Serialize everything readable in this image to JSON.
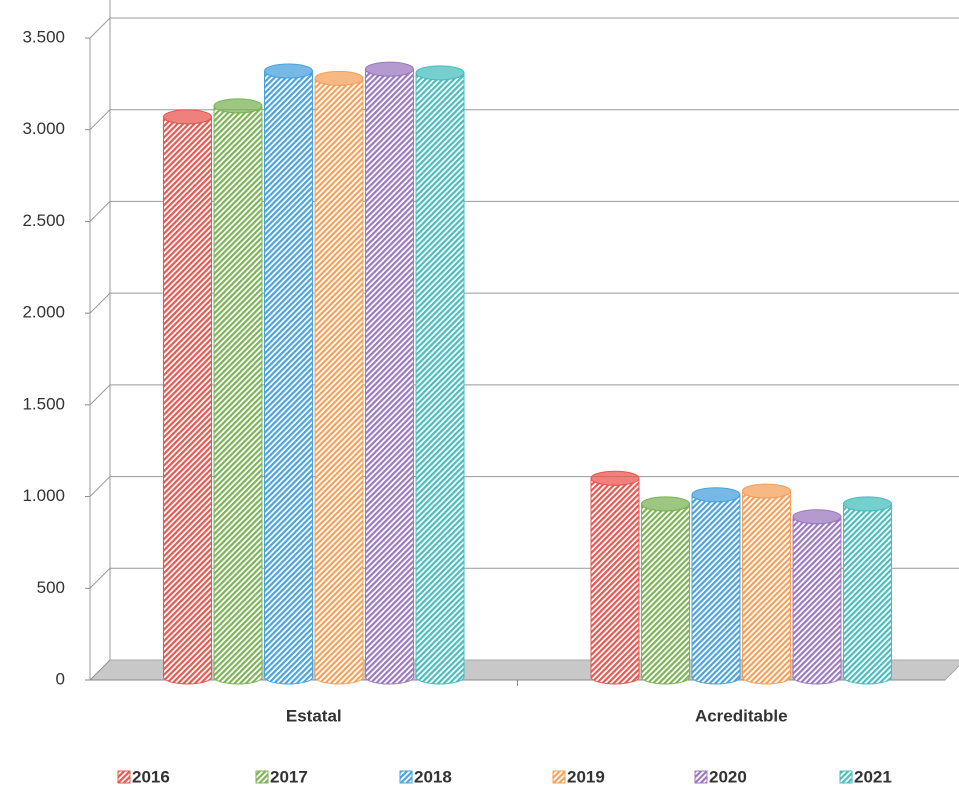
{
  "chart_data": {
    "type": "bar",
    "categories": [
      "Estatal",
      "Acreditable"
    ],
    "series": [
      {
        "name": "2016",
        "color": "#e8574f",
        "values": [
          3070,
          1100
        ]
      },
      {
        "name": "2017",
        "color": "#7cb356",
        "values": [
          3130,
          960
        ]
      },
      {
        "name": "2018",
        "color": "#4aa2de",
        "values": [
          3320,
          1010
        ]
      },
      {
        "name": "2019",
        "color": "#f5a05a",
        "values": [
          3280,
          1030
        ]
      },
      {
        "name": "2020",
        "color": "#9b78bf",
        "values": [
          3330,
          890
        ]
      },
      {
        "name": "2021",
        "color": "#48bdbd",
        "values": [
          3310,
          960
        ]
      }
    ],
    "ylim": [
      0,
      3500
    ],
    "yticks": [
      0,
      500,
      {
        "value": 1000,
        "label": "1.000"
      },
      {
        "value": 1500,
        "label": "1.500"
      },
      {
        "value": 2000,
        "label": "2.000"
      },
      {
        "value": 2500,
        "label": "2.500"
      },
      {
        "value": 3000,
        "label": "3.000"
      },
      {
        "value": 3500,
        "label": "3.500"
      }
    ],
    "grid": true,
    "legend": "bottom"
  }
}
